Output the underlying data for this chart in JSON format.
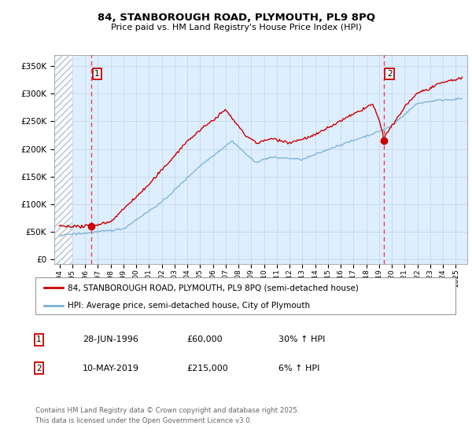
{
  "title": "84, STANBOROUGH ROAD, PLYMOUTH, PL9 8PQ",
  "subtitle": "Price paid vs. HM Land Registry's House Price Index (HPI)",
  "ylabel_ticks": [
    "£0",
    "£50K",
    "£100K",
    "£150K",
    "£200K",
    "£250K",
    "£300K",
    "£350K"
  ],
  "ytick_vals": [
    0,
    50000,
    100000,
    150000,
    200000,
    250000,
    300000,
    350000
  ],
  "ylim": [
    -8000,
    370000
  ],
  "xlim_start": 1993.6,
  "xlim_end": 2025.9,
  "xticks": [
    1994,
    1995,
    1996,
    1997,
    1998,
    1999,
    2000,
    2001,
    2002,
    2003,
    2004,
    2005,
    2006,
    2007,
    2008,
    2009,
    2010,
    2011,
    2012,
    2013,
    2014,
    2015,
    2016,
    2017,
    2018,
    2019,
    2020,
    2021,
    2022,
    2023,
    2024,
    2025
  ],
  "sale1_x": 1996.49,
  "sale1_y": 60000,
  "sale1_label": "1",
  "sale2_x": 2019.36,
  "sale2_y": 215000,
  "sale2_label": "2",
  "vline1_x": 1996.49,
  "vline2_x": 2019.36,
  "legend_line1": "84, STANBOROUGH ROAD, PLYMOUTH, PL9 8PQ (semi-detached house)",
  "legend_line2": "HPI: Average price, semi-detached house, City of Plymouth",
  "annotation1_date": "28-JUN-1996",
  "annotation1_price": "£60,000",
  "annotation1_hpi": "30% ↑ HPI",
  "annotation2_date": "10-MAY-2019",
  "annotation2_price": "£215,000",
  "annotation2_hpi": "6% ↑ HPI",
  "footer": "Contains HM Land Registry data © Crown copyright and database right 2025.\nThis data is licensed under the Open Government Licence v3.0.",
  "line_color_red": "#cc0000",
  "line_color_blue": "#7ab0d4",
  "bg_color": "#ddeeff",
  "grid_color": "#c8d8e8",
  "sale_marker_color": "#cc0000",
  "hatch_region_end": 1995.0
}
